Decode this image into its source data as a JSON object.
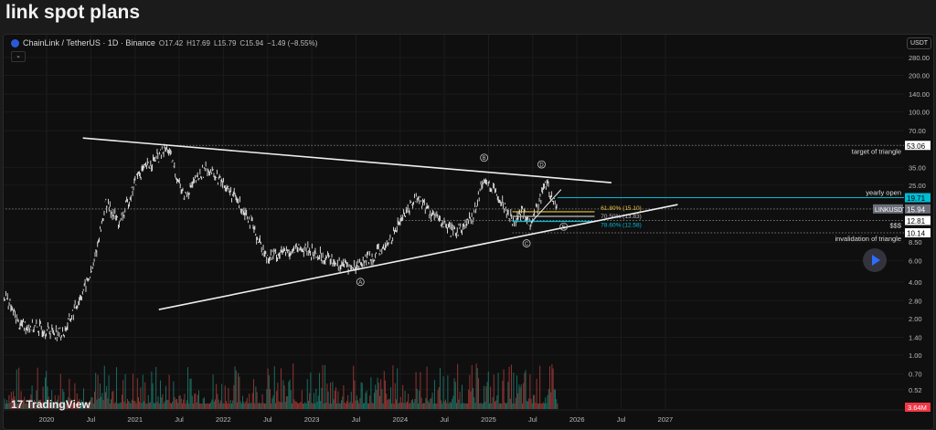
{
  "page_title": "link spot plans",
  "legend": {
    "symbol": "ChainLink / TetherUS · 1D · Binance",
    "open": "O17.42",
    "high": "H17.69",
    "low": "L15.79",
    "close": "C15.94",
    "change": "−1.49 (−8.55%)"
  },
  "currency_button": "USDT",
  "branding": "TradingView",
  "colors": {
    "bg": "#0f0f0f",
    "price": "#e6e6e6",
    "cyan": "#00bcd4",
    "yellow": "#e8c53a",
    "up_vol": "#1f8a7a",
    "down_vol": "#b8433f",
    "volume_badge": "#f23645"
  },
  "chart_data": {
    "type": "line",
    "title": "ChainLink / TetherUS · 1D · Binance",
    "yscale": "log",
    "ylim": [
      0.45,
      330
    ],
    "xlim": [
      2019.5,
      2027.6
    ],
    "y_ticks": [
      "280.00",
      "200.00",
      "140.00",
      "100.00",
      "70.00",
      "35.00",
      "25.00",
      "8.50",
      "6.00",
      "4.00",
      "2.80",
      "2.00",
      "1.40",
      "1.00",
      "0.70",
      "0.52"
    ],
    "x_ticks": [
      {
        "label": "2020",
        "x": 2020
      },
      {
        "label": "Jul",
        "x": 2020.5
      },
      {
        "label": "2021",
        "x": 2021
      },
      {
        "label": "Jul",
        "x": 2021.5
      },
      {
        "label": "2022",
        "x": 2022
      },
      {
        "label": "Jul",
        "x": 2022.5
      },
      {
        "label": "2023",
        "x": 2023
      },
      {
        "label": "Jul",
        "x": 2023.5
      },
      {
        "label": "2024",
        "x": 2024
      },
      {
        "label": "Jul",
        "x": 2024.5
      },
      {
        "label": "2025",
        "x": 2025
      },
      {
        "label": "Jul",
        "x": 2025.5
      },
      {
        "label": "2026",
        "x": 2026
      },
      {
        "label": "Jul",
        "x": 2026.5
      },
      {
        "label": "2027",
        "x": 2027
      }
    ],
    "price_path": [
      [
        2019.52,
        3.2
      ],
      [
        2019.69,
        1.8
      ],
      [
        2020.19,
        1.5
      ],
      [
        2020.52,
        5
      ],
      [
        2020.67,
        18
      ],
      [
        2020.83,
        12
      ],
      [
        2021.03,
        30
      ],
      [
        2021.37,
        50
      ],
      [
        2021.55,
        20
      ],
      [
        2021.81,
        35
      ],
      [
        2022.02,
        25
      ],
      [
        2022.28,
        14
      ],
      [
        2022.48,
        6.5
      ],
      [
        2022.9,
        7.5
      ],
      [
        2023.46,
        5.2
      ],
      [
        2023.83,
        7.5
      ],
      [
        2024.03,
        14
      ],
      [
        2024.19,
        20
      ],
      [
        2024.34,
        15
      ],
      [
        2024.6,
        10
      ],
      [
        2024.81,
        13
      ],
      [
        2024.94,
        28
      ],
      [
        2025.12,
        20
      ],
      [
        2025.27,
        13
      ],
      [
        2025.4,
        15
      ],
      [
        2025.48,
        11.5
      ],
      [
        2025.64,
        26
      ],
      [
        2025.78,
        15.94
      ]
    ],
    "trendlines": [
      {
        "name": "upper-triangle-line",
        "from": [
          2020.41,
          61
        ],
        "to": [
          2026.39,
          26.2
        ]
      },
      {
        "name": "lower-triangle-line",
        "from": [
          2021.27,
          2.37
        ],
        "to": [
          2027.14,
          17.3
        ]
      },
      {
        "name": "fib-swing-line",
        "from": [
          2025.48,
          12.3
        ],
        "to": [
          2025.82,
          23
        ]
      }
    ],
    "levels": [
      {
        "price": 53.06,
        "label": "53.06",
        "note": "target of triangle",
        "from": 2021.4,
        "style": "dotted",
        "box": "white"
      },
      {
        "price": 19.71,
        "label": "19.71",
        "note": "yearly open",
        "from": 2025.78,
        "style": "cyan",
        "box": "cyan"
      },
      {
        "price": 15.94,
        "label": "15.94",
        "tag": "LINKUSDT",
        "from": 2019.5,
        "style": "dotted",
        "box": "gray"
      },
      {
        "price": 12.81,
        "label": "12.81",
        "note": "$$$",
        "from": 2024.06,
        "style": "dotted",
        "box": "white"
      },
      {
        "price": 10.14,
        "label": "10.14",
        "note": "invalidation of triangle",
        "from": 2025.27,
        "style": "dotted",
        "box": "white"
      }
    ],
    "fib_levels": [
      {
        "label": "61.80% (15.10)",
        "price": 15.1,
        "color": "#e8c53a"
      },
      {
        "label": "70.50% (13.83)",
        "price": 13.83,
        "color": "#bdbdbd"
      },
      {
        "label": "78.60% (12.58)",
        "price": 12.58,
        "color": "#00bcd4"
      }
    ],
    "waves": [
      {
        "label": "A",
        "x": 2023.55,
        "p": 4.0
      },
      {
        "label": "B",
        "x": 2024.95,
        "p": 42
      },
      {
        "label": "C",
        "x": 2025.43,
        "p": 8.3
      },
      {
        "label": "D",
        "x": 2025.6,
        "p": 37
      },
      {
        "label": "E",
        "x": 2025.85,
        "p": 11.4
      }
    ],
    "volume_badge": "3.64M"
  }
}
